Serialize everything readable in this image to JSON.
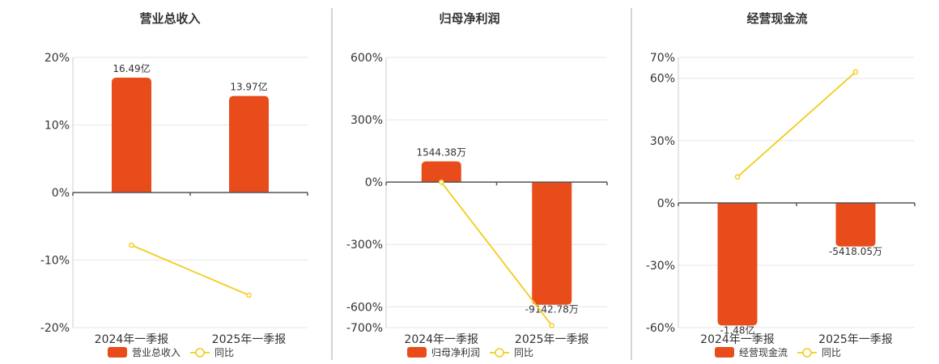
{
  "colors": {
    "bar": "#e84c1b",
    "line": "#f2cd1a"
  },
  "chart_data": [
    {
      "type": "bar+line",
      "title": "营业总收入",
      "categories": [
        "2024年一季报",
        "2025年一季报"
      ],
      "ylim": [
        -20,
        20
      ],
      "yticks": [
        20,
        10,
        0,
        -10,
        -20
      ],
      "ytick_labels": [
        "20%",
        "10%",
        "0%",
        "-10%",
        "-20%"
      ],
      "bars": {
        "name": "营业总收入",
        "values": [
          17,
          14.3
        ],
        "labels": [
          "16.49亿",
          "13.97亿"
        ]
      },
      "line": {
        "name": "同比",
        "values": [
          -7.8,
          -15.2
        ]
      },
      "legend": "bottom"
    },
    {
      "type": "bar+line",
      "title": "归母净利润",
      "categories": [
        "2024年一季报",
        "2025年一季报"
      ],
      "ylim": [
        -700,
        600
      ],
      "yticks": [
        600,
        300,
        0,
        -300,
        -600,
        -700
      ],
      "ytick_labels": [
        "600%",
        "300%",
        "0%",
        "-300%",
        "-600%",
        "-700%"
      ],
      "bars": {
        "name": "归母净利润",
        "values": [
          100,
          -590
        ],
        "labels": [
          "1544.38万",
          "-9142.78万"
        ]
      },
      "line": {
        "name": "同比",
        "values": [
          0,
          -690
        ]
      },
      "legend": "bottom"
    },
    {
      "type": "bar+line",
      "title": "经营现金流",
      "categories": [
        "2024年一季报",
        "2025年一季报"
      ],
      "ylim": [
        -60,
        70
      ],
      "yticks": [
        70,
        60,
        30,
        0,
        -30,
        -60
      ],
      "ytick_labels": [
        "70%",
        "60%",
        "30%",
        "0%",
        "-30%",
        "-60%"
      ],
      "bars": {
        "name": "经营现金流",
        "values": [
          -59,
          -21
        ],
        "labels": [
          "-1.48亿",
          "-5418.05万"
        ]
      },
      "line": {
        "name": "同比",
        "values": [
          12.5,
          63
        ]
      },
      "legend": "bottom"
    }
  ]
}
